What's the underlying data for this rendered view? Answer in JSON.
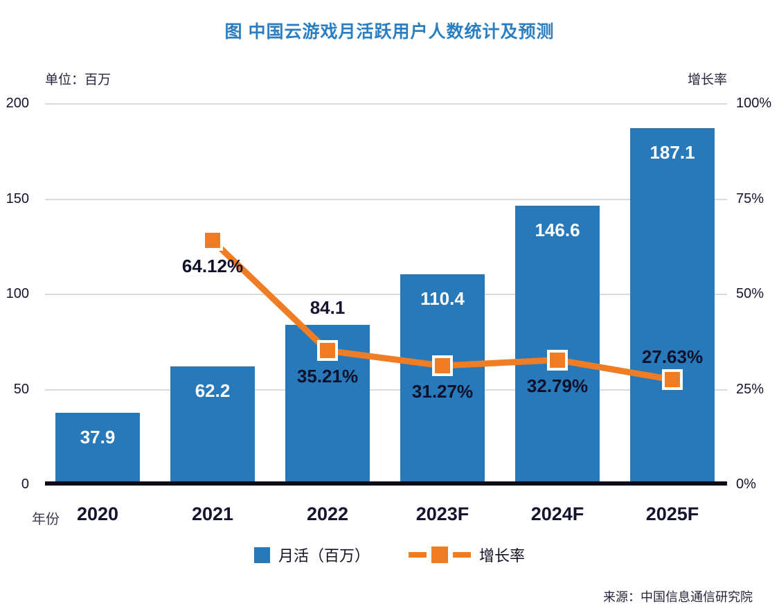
{
  "title": "图  中国云游戏月活跃用户人数统计及预测",
  "left_axis": {
    "unit_label": "单位：百万",
    "ticks": [
      {
        "value": 0,
        "label": "0"
      },
      {
        "value": 50,
        "label": "50"
      },
      {
        "value": 100,
        "label": "100"
      },
      {
        "value": 150,
        "label": "150"
      },
      {
        "value": 200,
        "label": "200"
      }
    ]
  },
  "right_axis": {
    "label": "增长率",
    "ticks": [
      {
        "value": 0,
        "label": "0%"
      },
      {
        "value": 25,
        "label": "25%"
      },
      {
        "value": 50,
        "label": "50%"
      },
      {
        "value": 75,
        "label": "75%"
      },
      {
        "value": 100,
        "label": "100%"
      }
    ]
  },
  "x_axis": {
    "label": "年份"
  },
  "legend": {
    "bar_label": "月活（百万）",
    "line_label": "增长率"
  },
  "source": "来源：中国信息通信研究院",
  "colors": {
    "bar": "#2879BA",
    "line": "#F07D23",
    "title": "#2B7FC1",
    "dark_text": "#14142E",
    "grid": "#D9D9DE",
    "axis_line": "#0C0C18"
  },
  "chart_data": {
    "type": "bar",
    "categories": [
      "2020",
      "2021",
      "2022",
      "2023F",
      "2024F",
      "2025F"
    ],
    "series": [
      {
        "name": "月活（百万）",
        "type": "bar",
        "axis": "left",
        "values": [
          37.9,
          62.2,
          84.1,
          110.4,
          146.6,
          187.1
        ],
        "labels": [
          "37.9",
          "62.2",
          "84.1",
          "110.4",
          "146.6",
          "187.1"
        ]
      },
      {
        "name": "增长率",
        "type": "line",
        "axis": "right",
        "values": [
          null,
          64.12,
          35.21,
          31.27,
          32.79,
          27.63
        ],
        "labels": [
          null,
          "64.12%",
          "35.21%",
          "31.27%",
          "32.79%",
          "27.63%"
        ]
      }
    ],
    "title": "图  中国云游戏月活跃用户人数统计及预测",
    "xlabel": "年份",
    "ylabel_left": "单位：百万",
    "ylabel_right": "增长率",
    "left_ylim": [
      0,
      200
    ],
    "right_ylim": [
      0,
      100
    ],
    "grid": true,
    "legend_position": "bottom"
  }
}
